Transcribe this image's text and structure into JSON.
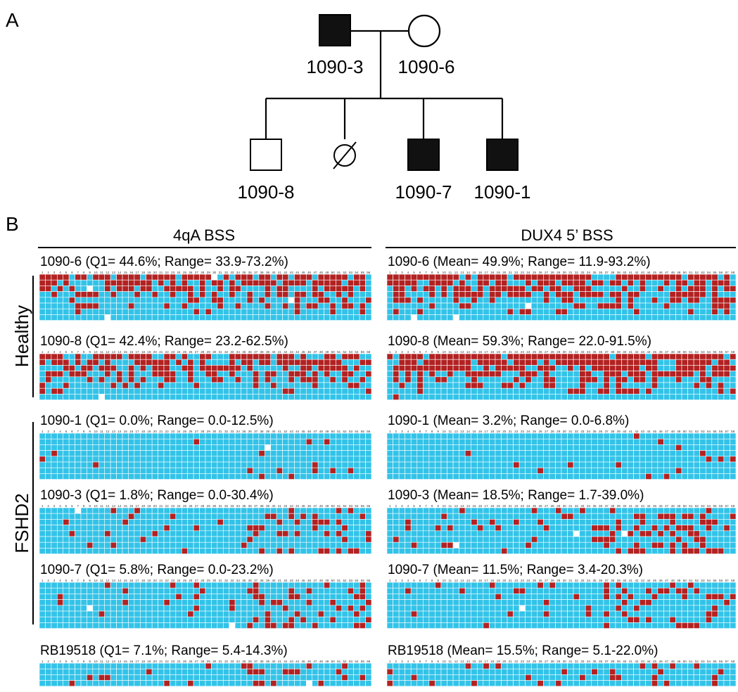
{
  "figure": {
    "panel_a_label": "A",
    "panel_b_label": "B",
    "colors": {
      "methylated": "#B22222",
      "unmethylated": "#33C3E8",
      "missing": "#FFFFFF",
      "affected_fill": "#111111"
    }
  },
  "pedigree": {
    "members": [
      {
        "id": "1090-3",
        "sex": "male",
        "affected": true,
        "deceased": false,
        "label": "1090-3"
      },
      {
        "id": "1090-6",
        "sex": "female",
        "affected": false,
        "deceased": false,
        "label": "1090-6"
      },
      {
        "id": "1090-8",
        "sex": "male",
        "affected": false,
        "deceased": false,
        "label": "1090-8"
      },
      {
        "id": "deceased-sibling",
        "sex": "unknown",
        "affected": false,
        "deceased": true,
        "label": ""
      },
      {
        "id": "1090-7",
        "sex": "male",
        "affected": true,
        "deceased": false,
        "label": "1090-7"
      },
      {
        "id": "1090-1",
        "sex": "male",
        "affected": true,
        "deceased": false,
        "label": "1090-1"
      }
    ]
  },
  "panel_b": {
    "columns": [
      {
        "key": "4qA",
        "title": "4qA BSS",
        "cpg_count": 56
      },
      {
        "key": "DUX4",
        "title": "DUX4 5’ BSS",
        "cpg_count": 58
      }
    ],
    "group_labels": [
      "Healthy",
      "FSHD2"
    ],
    "samples": [
      {
        "id": "1090-6",
        "group": "Healthy",
        "captions": [
          "1090-6 (Q1= 44.6%; Range= 33.9-73.2%)",
          "1090-6 (Mean= 49.9%; Range= 11.9-93.2%)"
        ],
        "methylation_percent": [
          44.6,
          49.9
        ],
        "rows": 8
      },
      {
        "id": "1090-8",
        "group": "Healthy",
        "captions": [
          "1090-8 (Q1= 42.4%; Range= 23.2-62.5%)",
          "1090-8 (Mean= 59.3%; Range= 22.0-91.5%)"
        ],
        "methylation_percent": [
          42.4,
          59.3
        ],
        "rows": 8
      },
      {
        "id": "1090-1",
        "group": "FSHD2",
        "captions": [
          "1090-1 (Q1= 0.0%; Range= 0.0-12.5%)",
          "1090-1 (Mean= 3.2%; Range= 0.0-6.8%)"
        ],
        "methylation_percent": [
          2.0,
          3.2
        ],
        "rows": 8
      },
      {
        "id": "1090-3",
        "group": "FSHD2",
        "captions": [
          "1090-3 (Q1= 1.8%; Range= 0.0-30.4%)",
          "1090-3 (Mean= 18.5%; Range= 1.7-39.0%)"
        ],
        "methylation_percent": [
          10.0,
          18.5
        ],
        "rows": 8
      },
      {
        "id": "1090-7",
        "group": "FSHD2",
        "captions": [
          "1090-7 (Q1= 5.8%; Range= 0.0-23.2%)",
          "1090-7 (Mean= 11.5%; Range= 3.4-20.3%)"
        ],
        "methylation_percent": [
          9.0,
          11.5
        ],
        "rows": 8
      },
      {
        "id": "RB19518",
        "group": "",
        "captions": [
          "RB19518 (Q1= 7.1%; Range= 5.4-14.3%)",
          "RB19518 (Mean= 15.5%; Range= 5.1-22.0%)"
        ],
        "methylation_percent": [
          9.0,
          15.5
        ],
        "rows": 4
      }
    ]
  }
}
